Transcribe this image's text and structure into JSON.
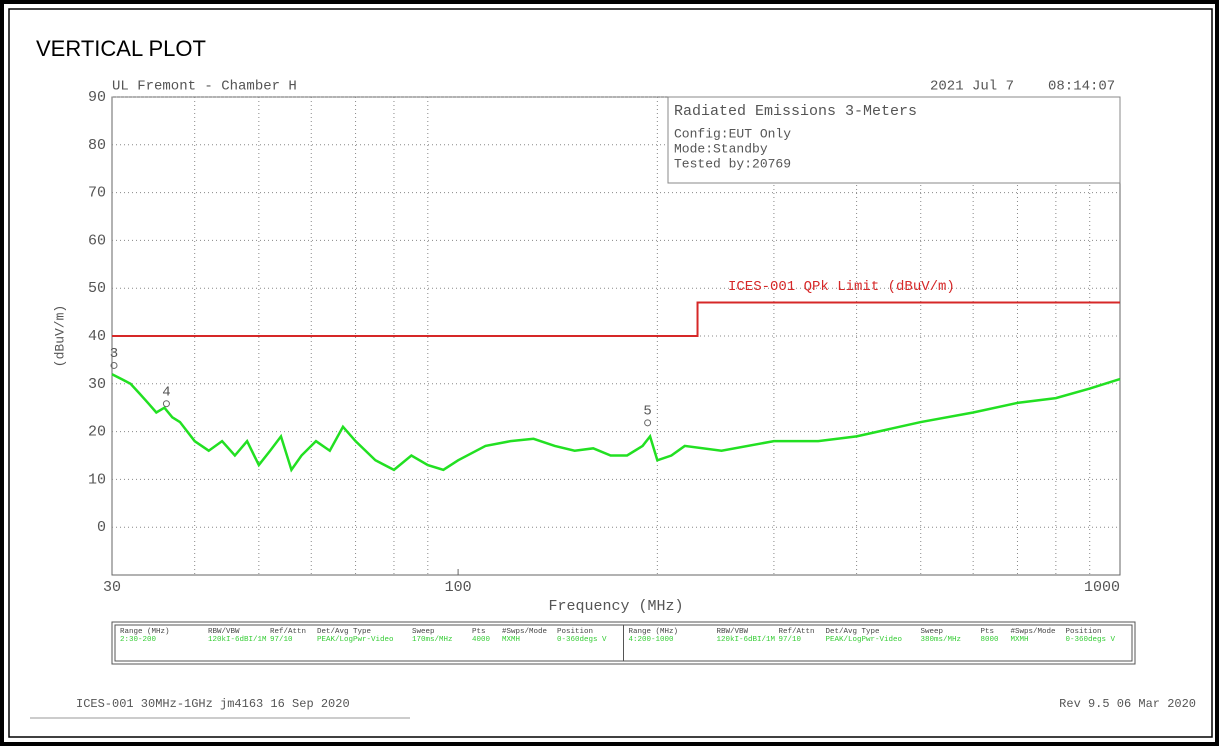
{
  "page_title": "VERTICAL PLOT",
  "chart_data": {
    "type": "line",
    "header_left": "UL Fremont - Chamber H",
    "header_date": "2021 Jul 7",
    "header_time": "08:14:07",
    "info_title": "Radiated Emissions 3-Meters",
    "info_lines": [
      "Config:EUT Only",
      "Mode:Standby",
      "Tested by:20769"
    ],
    "ylabel": "(dBuV/m)",
    "xlabel": "Frequency (MHz)",
    "xscale": "log",
    "xlim": [
      30,
      1000
    ],
    "xticks": [
      30,
      100,
      1000
    ],
    "xgrid": [
      40,
      50,
      60,
      70,
      80,
      90,
      200,
      300,
      400,
      500,
      600,
      700,
      800,
      900
    ],
    "ylim": [
      -10,
      90
    ],
    "yticks": [
      0,
      10,
      20,
      30,
      40,
      50,
      60,
      70,
      80,
      90
    ],
    "grid": true,
    "series": [
      {
        "color": "#22e022",
        "x": [
          30,
          31,
          32,
          33,
          34,
          35,
          36,
          37,
          38,
          40,
          42,
          44,
          46,
          48,
          50,
          52,
          54,
          56,
          58,
          61,
          64,
          67,
          70,
          75,
          80,
          85,
          90,
          95,
          100,
          110,
          120,
          130,
          140,
          150,
          160,
          170,
          180,
          190,
          195,
          200,
          210,
          220,
          250,
          300,
          350,
          400,
          500,
          600,
          700,
          800,
          900,
          1000
        ],
        "values": [
          32,
          31,
          30,
          28,
          26,
          24,
          25,
          23,
          22,
          18,
          16,
          18,
          15,
          18,
          13,
          16,
          19,
          12,
          15,
          18,
          16,
          21,
          18,
          14,
          12,
          15,
          13,
          12,
          14,
          17,
          18,
          18.5,
          17,
          16,
          16.5,
          15,
          15,
          17,
          19,
          14,
          15,
          17,
          16,
          18,
          18,
          19,
          22,
          24,
          26,
          27,
          29,
          31
        ]
      },
      {
        "name": "ICES-001 QPk Limit (dBuV/m)",
        "color": "#d62828",
        "x": [
          30,
          230,
          230,
          1000
        ],
        "values": [
          40,
          40,
          47,
          47
        ]
      }
    ],
    "markers": [
      {
        "label": "3",
        "x": 30,
        "y": 33
      },
      {
        "label": "4",
        "x": 36,
        "y": 25
      },
      {
        "label": "5",
        "x": 192,
        "y": 21
      }
    ],
    "settings_table": {
      "headers": [
        "Range (MHz)",
        "RBW/VBW",
        "Ref/Attn",
        "Det/Avg Type",
        "Sweep",
        "Pts",
        "#Swps/Mode",
        "Position"
      ],
      "rows": [
        [
          "2:30-200",
          "120kI-6dBI/1M",
          "97/10",
          "PEAK/LogPwr-Video",
          "170ms/MHz",
          "4000",
          "MXMH",
          "0-360degs V"
        ],
        [
          "4:200-1000",
          "120kI-6dBI/1M",
          "97/10",
          "PEAK/LogPwr-Video",
          "380ms/MHz",
          "8000",
          "MXMH",
          "0-360degs V"
        ]
      ]
    },
    "footer_left": "ICES-001 30MHz-1GHz jm4163 16 Sep 2020",
    "footer_right": "Rev 9.5 06 Mar 2020"
  }
}
